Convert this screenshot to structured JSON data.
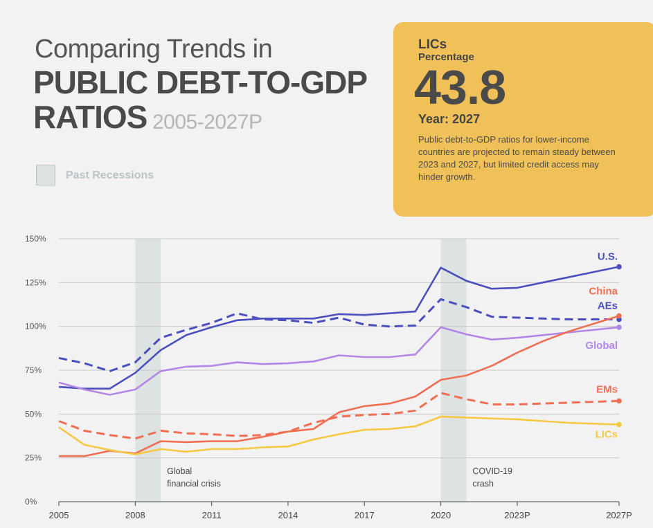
{
  "header": {
    "title_line1": "Comparing Trends in",
    "title_line2": "PUBLIC DEBT-TO-GDP",
    "title_line3": "RATIOS",
    "years": "2005-2027P"
  },
  "legend": {
    "recession_label": "Past Recessions"
  },
  "card": {
    "series": "LICs",
    "metric": "Percentage",
    "value": "43.8",
    "year_label": "Year: 2027",
    "description": "Public debt-to-GDP ratios for lower-income countries are projected to remain steady between 2023 and 2027, but limited credit access may hinder growth."
  },
  "colors": {
    "blue": "#4a4fbd",
    "orange": "#ef6f52",
    "purple": "#b386e6",
    "yellow": "#f5c842",
    "recession": "#dde3e3",
    "card": "#f0c159"
  },
  "chart_data": {
    "type": "line",
    "x": [
      2005,
      2006,
      2007,
      2008,
      2009,
      2010,
      2011,
      2012,
      2013,
      2014,
      2015,
      2016,
      2017,
      2018,
      2019,
      2020,
      2021,
      2022,
      2023,
      2024,
      2025,
      2026,
      2027
    ],
    "xlim": [
      2005,
      2027
    ],
    "ylim": [
      0,
      150
    ],
    "y_ticks": [
      "0%",
      "25%",
      "50%",
      "75%",
      "100%",
      "125%",
      "150%"
    ],
    "y_tick_values": [
      0,
      25,
      50,
      75,
      100,
      125,
      150
    ],
    "x_ticks": [
      "2005",
      "2008",
      "2011",
      "2014",
      "2017",
      "2020",
      "2023P",
      "2027P"
    ],
    "x_tick_values": [
      2005,
      2008,
      2011,
      2014,
      2017,
      2020,
      2023,
      2027
    ],
    "grid": true,
    "recessions": [
      {
        "start": 2008,
        "end": 2009,
        "label_line1": "Global",
        "label_line2": "financial crisis"
      },
      {
        "start": 2020,
        "end": 2021,
        "label_line1": "COVID-19",
        "label_line2": "crash"
      }
    ],
    "series": [
      {
        "name": "U.S.",
        "color": "#4a4fbd",
        "dashed": false,
        "marker": true,
        "values": [
          65.5,
          64.5,
          64.5,
          73.5,
          86.5,
          95,
          99.5,
          103.5,
          104.5,
          104.5,
          104.5,
          107,
          106.5,
          107.5,
          108.5,
          133.5,
          126,
          121.5,
          122,
          125,
          128,
          131,
          134
        ]
      },
      {
        "name": "AEs",
        "color": "#4a4fbd",
        "dashed": true,
        "marker": true,
        "values": [
          82,
          79,
          74.5,
          79.5,
          93.5,
          98,
          102,
          107.5,
          104,
          103.5,
          102,
          105,
          101,
          100,
          100.5,
          115.5,
          111,
          105.5,
          105,
          104.5,
          104,
          104,
          104
        ]
      },
      {
        "name": "Global",
        "color": "#b386e6",
        "dashed": false,
        "marker": true,
        "values": [
          68,
          64,
          61,
          64,
          74.5,
          77,
          77.5,
          79.5,
          78.5,
          79,
          80,
          83.5,
          82.5,
          82.5,
          84,
          99.5,
          95.5,
          92.5,
          93.5,
          95,
          96.5,
          98,
          99.5
        ]
      },
      {
        "name": "China",
        "color": "#ef6f52",
        "dashed": false,
        "marker": true,
        "values": [
          26,
          26,
          29,
          27.5,
          34.5,
          34,
          34.5,
          34.5,
          37,
          40,
          41.5,
          51,
          54.5,
          56,
          60,
          69.5,
          72,
          77.5,
          85,
          91.5,
          97,
          101.5,
          106
        ]
      },
      {
        "name": "EMs",
        "color": "#ef6f52",
        "dashed": true,
        "marker": true,
        "values": [
          46,
          40.5,
          38,
          36,
          40.5,
          39,
          38.5,
          37.5,
          38,
          40,
          45,
          48.5,
          49.5,
          50,
          52,
          62,
          58.5,
          55.5,
          55.5,
          56,
          56.5,
          57,
          57.5
        ]
      },
      {
        "name": "LICs",
        "color": "#f5c842",
        "dashed": false,
        "marker": true,
        "values": [
          42.5,
          32.5,
          29.5,
          27,
          30,
          28.5,
          30,
          30,
          31,
          31.5,
          35.5,
          38.5,
          41,
          41.5,
          43,
          48.5,
          48,
          47.5,
          47,
          46,
          45,
          44.5,
          44
        ]
      }
    ]
  }
}
